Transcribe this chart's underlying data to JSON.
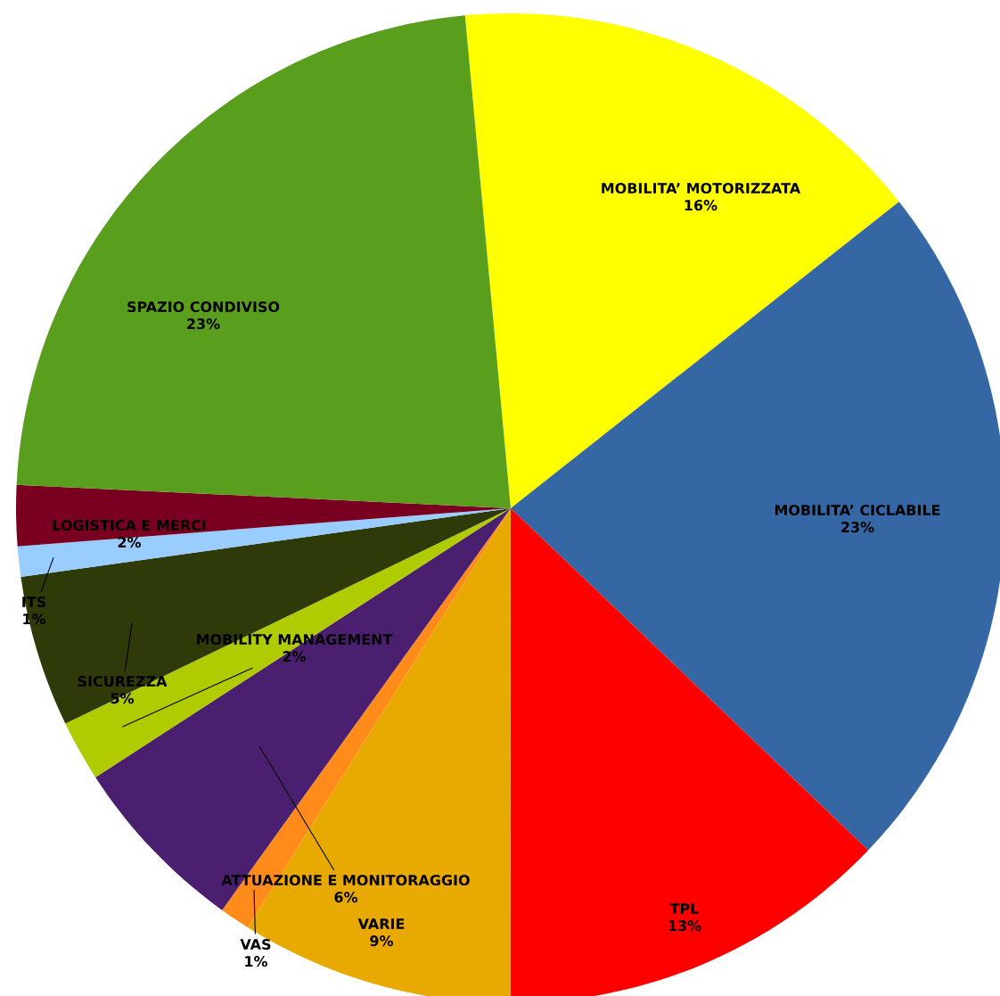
{
  "chart_data": {
    "type": "pie",
    "categories": [
      "MOBILITA’ MOTORIZZATA",
      "MOBILITA’ CICLABILE",
      "TPL",
      "VARIE",
      "VAS",
      "ATTUAZIONE E MONITORAGGIO",
      "MOBILITY MANAGEMENT",
      "SICUREZZA",
      "ITS",
      "LOGISTICA E MERCI",
      "SPAZIO CONDIVISO"
    ],
    "values": [
      16,
      23,
      13,
      9,
      1,
      6,
      2,
      5,
      1,
      2,
      23
    ],
    "value_labels": [
      "16%",
      "23%",
      "13%",
      "9%",
      "1%",
      "6%",
      "2%",
      "5%",
      "1%",
      "2%",
      "23%"
    ],
    "colors": [
      "#ffff00",
      "#3567a5",
      "#ff0000",
      "#e8a900",
      "#ff8c1a",
      "#4b1f6f",
      "#b0cc00",
      "#2e3a08",
      "#99ccff",
      "#7a0021",
      "#5a9e1e"
    ],
    "legend": false
  }
}
